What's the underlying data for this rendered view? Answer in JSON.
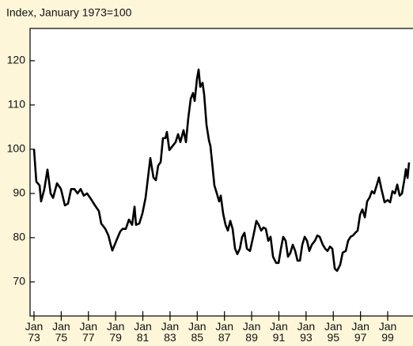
{
  "chart_data": {
    "type": "line",
    "title": "Index, January 1973=100",
    "x": [
      1973.0,
      1973.17,
      1973.41,
      1973.52,
      1973.76,
      1973.99,
      1974.22,
      1974.4,
      1974.69,
      1974.98,
      1975.27,
      1975.5,
      1975.73,
      1975.97,
      1976.2,
      1976.43,
      1976.66,
      1976.9,
      1977.13,
      1977.48,
      1977.77,
      1977.94,
      1978.24,
      1978.47,
      1978.64,
      1978.76,
      1979.05,
      1979.34,
      1979.52,
      1979.75,
      1979.98,
      1980.21,
      1980.39,
      1980.5,
      1980.74,
      1980.97,
      1981.2,
      1981.38,
      1981.55,
      1981.78,
      1981.96,
      1982.13,
      1982.31,
      1982.48,
      1982.66,
      1982.77,
      1982.95,
      1983.18,
      1983.41,
      1983.59,
      1983.76,
      1983.99,
      1984.17,
      1984.34,
      1984.52,
      1984.69,
      1984.81,
      1984.98,
      1985.1,
      1985.22,
      1985.39,
      1985.51,
      1985.68,
      1985.86,
      1985.97,
      1986.09,
      1986.26,
      1986.44,
      1986.61,
      1986.73,
      1986.9,
      1987.08,
      1987.25,
      1987.43,
      1987.6,
      1987.78,
      1987.95,
      1988.13,
      1988.3,
      1988.47,
      1988.65,
      1988.88,
      1989.11,
      1989.35,
      1989.52,
      1989.7,
      1989.87,
      1990.04,
      1990.22,
      1990.39,
      1990.57,
      1990.8,
      1990.98,
      1991.15,
      1991.32,
      1991.5,
      1991.67,
      1991.85,
      1992.02,
      1992.2,
      1992.37,
      1992.55,
      1992.72,
      1992.9,
      1993.07,
      1993.24,
      1993.42,
      1993.65,
      1993.83,
      1994.0,
      1994.23,
      1994.41,
      1994.58,
      1994.76,
      1994.93,
      1995.11,
      1995.28,
      1995.51,
      1995.69,
      1995.92,
      1996.09,
      1996.27,
      1996.44,
      1996.62,
      1996.79,
      1996.97,
      1997.14,
      1997.32,
      1997.49,
      1997.67,
      1997.84,
      1998.01,
      1998.19,
      1998.36,
      1998.54,
      1998.77,
      1999.0,
      1999.18,
      1999.35,
      1999.53,
      1999.7,
      1999.88,
      2000.05,
      2000.22,
      2000.34,
      2000.46,
      2000.57
    ],
    "values": [
      100,
      92.7,
      91.8,
      88.2,
      91,
      95.4,
      90,
      89,
      92.3,
      91,
      87.3,
      87.7,
      91,
      91,
      90,
      91,
      89.5,
      90,
      89,
      87.3,
      86,
      83.2,
      82,
      80.5,
      78.4,
      77.1,
      79.3,
      81.4,
      82,
      82,
      84.1,
      82.9,
      87,
      82.9,
      83.2,
      85.5,
      89,
      93.6,
      98,
      93.6,
      93,
      96.3,
      97.1,
      102.5,
      102.5,
      103.9,
      99.8,
      100.7,
      101.6,
      103.4,
      101.6,
      104.3,
      101.6,
      107,
      111.4,
      112.7,
      110.9,
      115.9,
      118,
      114.1,
      115,
      112.3,
      105.5,
      102,
      100.7,
      97.1,
      91.8,
      90,
      88.2,
      89.5,
      85.5,
      82.9,
      81.6,
      83.8,
      82,
      77.5,
      76.3,
      77.5,
      80.2,
      81.1,
      77.5,
      77,
      80.2,
      83.8,
      82.9,
      81.6,
      82.3,
      82,
      79.3,
      80.2,
      75.7,
      74.3,
      74.3,
      77.5,
      80.2,
      79.3,
      75.7,
      76.6,
      78.4,
      77,
      74.8,
      74.8,
      78.4,
      80.2,
      79.3,
      77,
      78.4,
      79.3,
      80.5,
      80.2,
      78.4,
      77.5,
      77,
      78,
      77.5,
      73,
      72.5,
      73.9,
      76.6,
      77,
      79.3,
      80.2,
      80.5,
      81.1,
      81.6,
      85.2,
      86.4,
      84.6,
      88.2,
      89.1,
      90.5,
      90,
      91.8,
      93.6,
      91,
      88,
      88.5,
      88,
      90.5,
      90,
      92,
      89.5,
      90,
      93,
      95.5,
      93.5,
      97
    ],
    "color": "#000000",
    "xlim": [
      1972.71,
      2000.86
    ],
    "xticks": [
      {
        "value": 1973,
        "label": "Jan 73"
      },
      {
        "value": 1975,
        "label": "Jan 75"
      },
      {
        "value": 1977,
        "label": "Jan 77"
      },
      {
        "value": 1979,
        "label": "Jan 79"
      },
      {
        "value": 1981,
        "label": "Jan 81"
      },
      {
        "value": 1983,
        "label": "Jan 83"
      },
      {
        "value": 1985,
        "label": "Jan 85"
      },
      {
        "value": 1987,
        "label": "Jan 87"
      },
      {
        "value": 1989,
        "label": "Jan 89"
      },
      {
        "value": 1991,
        "label": "Jan 91"
      },
      {
        "value": 1993,
        "label": "Jan 93"
      },
      {
        "value": 1995,
        "label": "Jan 95"
      },
      {
        "value": 1997,
        "label": "Jan 97"
      },
      {
        "value": 1999,
        "label": "Jan 99"
      }
    ],
    "ylim": [
      62.3,
      127.3
    ],
    "yticks": [
      70,
      80,
      90,
      100,
      110,
      120
    ],
    "grid": false
  }
}
